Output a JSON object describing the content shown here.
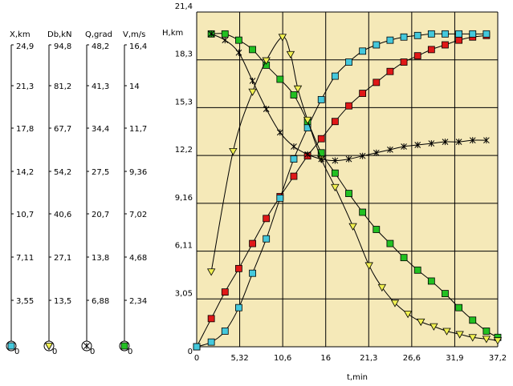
{
  "chart_data": {
    "type": "line",
    "title": "",
    "xlabel": "t,min",
    "ylabel": "H,km",
    "xlim": [
      0,
      37.2
    ],
    "ylim": [
      0,
      21.4
    ],
    "x_ticks": [
      "0",
      "5,32",
      "10,6",
      "16",
      "21,3",
      "26,6",
      "31,9",
      "37,2"
    ],
    "y_ticks": [
      "0",
      "3,05",
      "6,11",
      "9,16",
      "12,2",
      "15,3",
      "18,3",
      "21,4"
    ],
    "grid": true,
    "plot_bg": "#F5E9B8",
    "aux_axes": [
      {
        "label": "X,km",
        "ticks": [
          "24,9",
          "21,3",
          "17,8",
          "14,2",
          "10,7",
          "7,11",
          "3,55",
          "0"
        ],
        "marker": "square",
        "color": "#44C8DC"
      },
      {
        "label": "Db,kN",
        "ticks": [
          "94,8",
          "81,2",
          "67,7",
          "54,2",
          "40,6",
          "27,1",
          "13,5",
          "0"
        ],
        "marker": "triangle",
        "color": "#F0F050"
      },
      {
        "label": "Q,grad",
        "ticks": [
          "48,2",
          "41,3",
          "34,4",
          "27,5",
          "20,7",
          "13,8",
          "6,88",
          "0"
        ],
        "marker": "star",
        "color": "#000000"
      },
      {
        "label": "V,m/s",
        "ticks": [
          "16,4",
          "14",
          "11,7",
          "9,36",
          "7,02",
          "4,68",
          "2,34",
          "0"
        ],
        "marker": "square",
        "color": "#22C022"
      }
    ],
    "series": [
      {
        "marker": "square",
        "color": "#E01818",
        "x": [
          0,
          1.8,
          3.5,
          5.2,
          6.9,
          8.6,
          10.3,
          12,
          13.7,
          15.4,
          17.1,
          18.8,
          20.5,
          22.2,
          23.9,
          25.6,
          27.3,
          29,
          30.7,
          32.4,
          34.1,
          35.8
        ],
        "y": [
          0,
          1.8,
          3.5,
          5.0,
          6.6,
          8.2,
          9.6,
          10.9,
          12.2,
          13.3,
          14.4,
          15.4,
          16.2,
          16.9,
          17.6,
          18.2,
          18.6,
          19.0,
          19.3,
          19.6,
          19.8,
          19.9
        ]
      },
      {
        "marker": "square",
        "color": "#44C8DC",
        "x": [
          0,
          1.8,
          3.5,
          5.2,
          6.9,
          8.6,
          10.3,
          12,
          13.7,
          15.4,
          17.1,
          18.8,
          20.5,
          22.2,
          23.9,
          25.6,
          27.3,
          29,
          30.7,
          32.4,
          34.1,
          35.8
        ],
        "y": [
          0,
          0.3,
          1.0,
          2.5,
          4.7,
          6.9,
          9.5,
          12,
          14,
          15.8,
          17.3,
          18.2,
          18.9,
          19.3,
          19.6,
          19.8,
          19.9,
          20.0,
          20.0,
          20.0,
          20.0,
          20.0
        ]
      },
      {
        "marker": "square",
        "color": "#22C022",
        "x": [
          1.8,
          3.5,
          5.2,
          6.9,
          8.6,
          10.3,
          12,
          13.7,
          15.4,
          17.1,
          18.8,
          20.5,
          22.2,
          23.9,
          25.6,
          27.3,
          29,
          30.7,
          32.4,
          34.1,
          35.8,
          37.2
        ],
        "y": [
          20.0,
          20.0,
          19.6,
          19.0,
          18.0,
          17.1,
          16.1,
          14.4,
          12.4,
          11.1,
          9.8,
          8.6,
          7.5,
          6.6,
          5.7,
          4.9,
          4.2,
          3.4,
          2.5,
          1.7,
          1.0,
          0.6
        ]
      },
      {
        "marker": "triangle",
        "color": "#F0F050",
        "x": [
          1.8,
          4.5,
          6.9,
          8.6,
          10.6,
          11.6,
          12.5,
          13.7,
          15.4,
          17.1,
          19.3,
          21.3,
          22.9,
          24.5,
          26.1,
          27.7,
          29.3,
          30.9,
          32.5,
          34.1,
          35.8,
          37.2
        ],
        "y": [
          4.8,
          12.5,
          16.3,
          18.3,
          19.8,
          18.7,
          16.5,
          14.5,
          12.0,
          10.2,
          7.7,
          5.2,
          3.8,
          2.8,
          2.1,
          1.6,
          1.3,
          1.0,
          0.8,
          0.6,
          0.5,
          0.4
        ]
      },
      {
        "marker": "star",
        "color": "#000000",
        "x": [
          1.8,
          3.5,
          5.2,
          6.9,
          8.6,
          10.3,
          12,
          13.7,
          15.4,
          17.1,
          18.8,
          20.5,
          22.2,
          23.9,
          25.6,
          27.3,
          29,
          30.7,
          32.4,
          34.1,
          35.8
        ],
        "y": [
          20.0,
          19.6,
          18.8,
          17.0,
          15.2,
          13.7,
          12.8,
          12.3,
          12.0,
          11.9,
          12.0,
          12.2,
          12.4,
          12.6,
          12.8,
          12.9,
          13.0,
          13.1,
          13.1,
          13.2,
          13.2
        ]
      }
    ]
  }
}
